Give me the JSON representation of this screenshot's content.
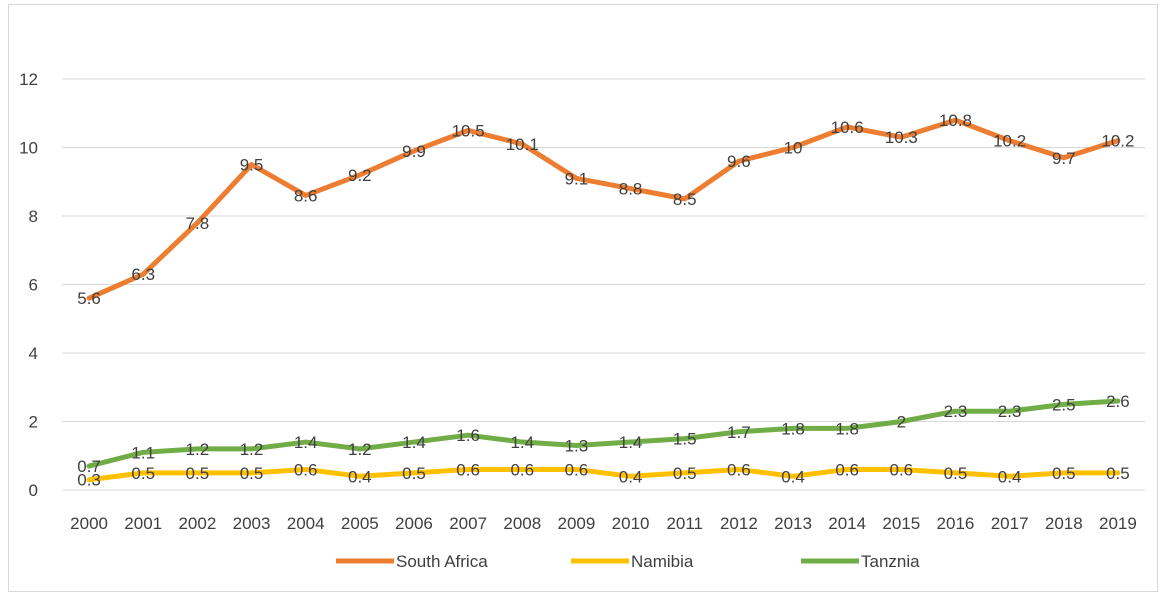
{
  "chart_data": {
    "type": "line",
    "title": "",
    "xlabel": "",
    "ylabel": "",
    "categories": [
      "2000",
      "2001",
      "2002",
      "2003",
      "2004",
      "2005",
      "2006",
      "2007",
      "2008",
      "2009",
      "2010",
      "2011",
      "2012",
      "2013",
      "2014",
      "2015",
      "2016",
      "2017",
      "2018",
      "2019"
    ],
    "ylim": [
      0,
      12
    ],
    "yticks": [
      0,
      2,
      4,
      6,
      8,
      10,
      12
    ],
    "grid": "horizontal",
    "legend_position": "bottom",
    "series": [
      {
        "name": "South Africa",
        "color": "#ED7D31",
        "values": [
          5.6,
          6.3,
          7.8,
          9.5,
          8.6,
          9.2,
          9.9,
          10.5,
          10.1,
          9.1,
          8.8,
          8.5,
          9.6,
          10,
          10.6,
          10.3,
          10.8,
          10.2,
          9.7,
          10.2
        ]
      },
      {
        "name": "Namibia",
        "color": "#FFC000",
        "values": [
          0.3,
          0.5,
          0.5,
          0.5,
          0.6,
          0.4,
          0.5,
          0.6,
          0.6,
          0.6,
          0.4,
          0.5,
          0.6,
          0.4,
          0.6,
          0.6,
          0.5,
          0.4,
          0.5,
          0.5
        ]
      },
      {
        "name": "Tanznia",
        "color": "#70AD47",
        "values": [
          0.7,
          1.1,
          1.2,
          1.2,
          1.4,
          1.2,
          1.4,
          1.6,
          1.4,
          1.3,
          1.4,
          1.5,
          1.7,
          1.8,
          1.8,
          2,
          2.3,
          2.3,
          2.5,
          2.6
        ]
      }
    ]
  }
}
